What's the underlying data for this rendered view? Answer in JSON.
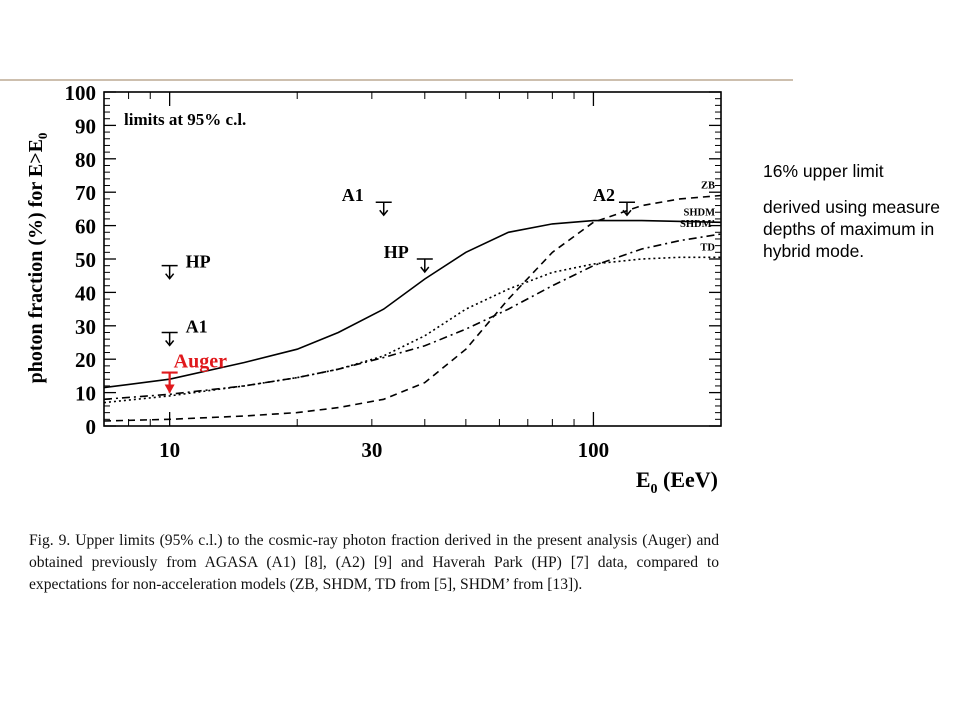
{
  "slide": {
    "side_note_title": "16% upper limit",
    "side_note_body": "derived using measure depths of maximum in hybrid mode."
  },
  "figure": {
    "caption": "Fig. 9.  Upper limits (95% c.l.) to the cosmic-ray photon fraction derived in the present analysis (Auger) and obtained previously from AGASA (A1) [8], (A2) [9] and Haverah Park (HP) [7] data, compared to expectations for non-acceleration models (ZB, SHDM, TD from [5], SHDM’ from [13]).",
    "inset_label": "limits at 95% c.l."
  },
  "chart_data": {
    "type": "line",
    "title": "",
    "xlabel": "E0 (EeV)",
    "ylabel": "photon fraction (%) for E>E0",
    "x_scale": "log",
    "xlim": [
      7,
      200
    ],
    "ylim": [
      0,
      100
    ],
    "x_ticks": [
      10,
      30,
      100
    ],
    "y_ticks": [
      0,
      10,
      20,
      30,
      40,
      50,
      60,
      70,
      80,
      90,
      100
    ],
    "grid": false,
    "colors": {
      "axes": "#000000",
      "auger": "#e0191c"
    },
    "series": [
      {
        "name": "SHDM",
        "style": "solid",
        "x": [
          7,
          10,
          15,
          20,
          25,
          32,
          40,
          50,
          63,
          80,
          100,
          130,
          200
        ],
        "y": [
          11.5,
          14,
          19,
          23,
          28,
          35,
          44,
          52,
          58,
          60.5,
          61.5,
          61.5,
          61
        ]
      },
      {
        "name": "ZB",
        "style": "dashed",
        "x": [
          7,
          10,
          15,
          20,
          25,
          32,
          40,
          50,
          63,
          80,
          100,
          130,
          160,
          200
        ],
        "y": [
          1.5,
          2,
          3,
          4,
          5.5,
          8,
          13,
          23,
          38,
          52,
          61,
          66,
          68,
          69
        ]
      },
      {
        "name": "SHDM’",
        "style": "dashdot",
        "x": [
          7,
          10,
          15,
          20,
          25,
          32,
          40,
          50,
          63,
          80,
          100,
          130,
          160,
          200
        ],
        "y": [
          8,
          9.5,
          12,
          14.5,
          17,
          20.5,
          24,
          29,
          35,
          42,
          48,
          53,
          55.5,
          57.5
        ]
      },
      {
        "name": "TD",
        "style": "dotted",
        "x": [
          7,
          10,
          15,
          20,
          25,
          32,
          40,
          50,
          63,
          80,
          100,
          130,
          160,
          200
        ],
        "y": [
          7,
          9,
          12,
          14.5,
          17,
          21,
          27,
          35,
          41,
          46,
          48.5,
          50,
          50.5,
          50.5
        ]
      }
    ],
    "upper_limits": [
      {
        "label": "Auger",
        "x": 10,
        "y": 16
      },
      {
        "label": "HP",
        "x": 10,
        "y": 48
      },
      {
        "label": "A1",
        "x": 10,
        "y": 28
      },
      {
        "label": "A1",
        "x": 32,
        "y": 67
      },
      {
        "label": "HP",
        "x": 40,
        "y": 50
      },
      {
        "label": "A2",
        "x": 120,
        "y": 67
      }
    ]
  }
}
